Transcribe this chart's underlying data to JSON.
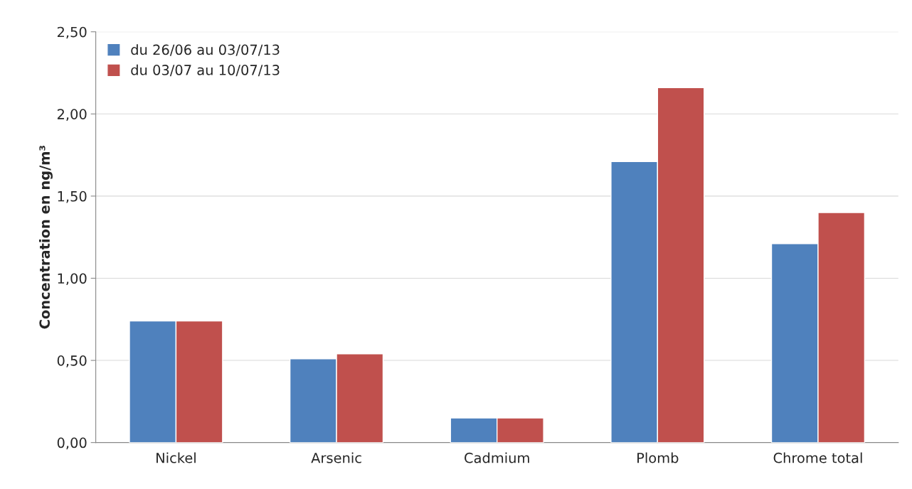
{
  "chart_data": {
    "type": "bar",
    "ylabel": "Concentration en ng/m³",
    "categories": [
      "Nickel",
      "Arsenic",
      "Cadmium",
      "Plomb",
      "Chrome total"
    ],
    "series": [
      {
        "name": "du 26/06 au 03/07/13",
        "color": "#4f81bd",
        "values": [
          0.74,
          0.51,
          0.15,
          1.71,
          1.21
        ]
      },
      {
        "name": "du 03/07 au 10/07/13",
        "color": "#c0504d",
        "values": [
          0.74,
          0.54,
          0.15,
          2.16,
          1.4
        ]
      }
    ],
    "ylim": [
      0,
      2.5
    ],
    "yticks": [
      {
        "value": 0,
        "label": "0,00"
      },
      {
        "value": 0.5,
        "label": "0,50"
      },
      {
        "value": 1,
        "label": "1,00"
      },
      {
        "value": 1.5,
        "label": "1,50"
      },
      {
        "value": 2,
        "label": "2,00"
      },
      {
        "value": 2.5,
        "label": "2,50"
      }
    ],
    "grid": "y",
    "legend": "top left"
  }
}
